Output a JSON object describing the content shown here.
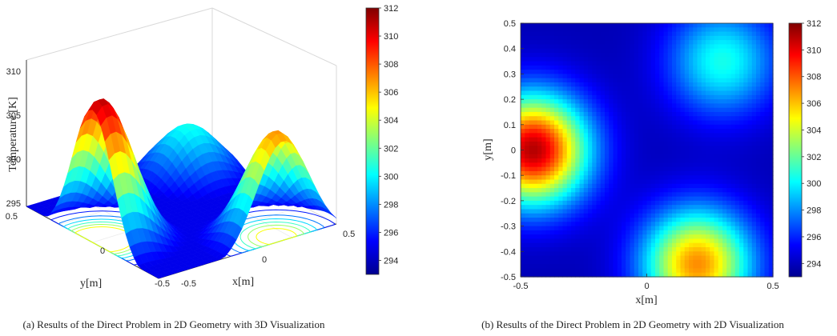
{
  "chart_data": [
    {
      "type": "surface",
      "caption": "(a) Results of the Direct Problem in 2D Geometry with 3D Visualization",
      "zlabel": "Temperature [K]",
      "xlabel": "x[m]",
      "ylabel": "y[m]",
      "x_ticks": [
        "-0.5",
        "0",
        "0.5"
      ],
      "y_ticks": [
        "0.5",
        "0",
        "-0.5"
      ],
      "z_ticks": [
        "295",
        "300",
        "305",
        "310"
      ],
      "xlim": [
        -0.5,
        0.5
      ],
      "ylim": [
        -0.5,
        0.5
      ],
      "zlim": [
        295,
        312
      ],
      "colormap": "jet",
      "colorbar": {
        "range": [
          293,
          312
        ],
        "ticks": [
          "312",
          "310",
          "308",
          "306",
          "304",
          "302",
          "300",
          "298",
          "296",
          "294"
        ]
      },
      "contour_projection": true,
      "grid": true,
      "sources": [
        {
          "x": -0.45,
          "y": 0.0,
          "peak": 311
        },
        {
          "x": 0.2,
          "y": -0.45,
          "peak": 307
        },
        {
          "x": 0.3,
          "y": 0.35,
          "peak": 300.5
        }
      ],
      "base_temperature": 294
    },
    {
      "type": "heatmap",
      "caption": "(b) Results of the Direct Problem in 2D Geometry with 2D Visualization",
      "xlabel": "x[m]",
      "ylabel": "y[m]",
      "x_ticks": [
        "-0.5",
        "0",
        "0.5"
      ],
      "y_ticks": [
        "0.5",
        "0.4",
        "0.3",
        "0.2",
        "0.1",
        "0",
        "-0.1",
        "-0.2",
        "-0.3",
        "-0.4",
        "-0.5"
      ],
      "xlim": [
        -0.5,
        0.5
      ],
      "ylim": [
        -0.5,
        0.5
      ],
      "colormap": "jet",
      "colorbar": {
        "range": [
          293,
          312
        ],
        "ticks": [
          "312",
          "310",
          "308",
          "306",
          "304",
          "302",
          "300",
          "298",
          "296",
          "294"
        ]
      },
      "sources": [
        {
          "x": -0.45,
          "y": 0.0,
          "peak": 311
        },
        {
          "x": 0.2,
          "y": -0.45,
          "peak": 307
        },
        {
          "x": 0.3,
          "y": 0.35,
          "peak": 300.5
        }
      ],
      "base_temperature": 294
    }
  ]
}
